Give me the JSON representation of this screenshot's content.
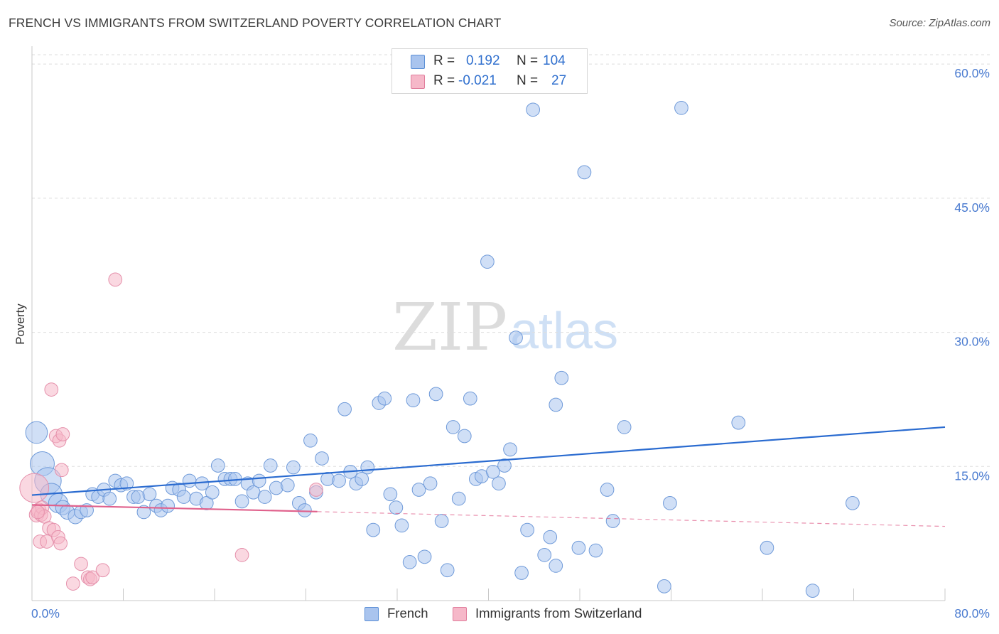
{
  "header": {
    "title": "FRENCH VS IMMIGRANTS FROM SWITZERLAND POVERTY CORRELATION CHART",
    "source": "Source: ZipAtlas.com"
  },
  "legend": {
    "rows": [
      {
        "r_label": "R =",
        "r_value": "0.192",
        "n_label": "N =",
        "n_value": "104",
        "color": "#a9c4ee",
        "border": "#5b8fd6"
      },
      {
        "r_label": "R =",
        "r_value": "-0.021",
        "n_label": "N =",
        "n_value": "27",
        "color": "#f6b8c9",
        "border": "#e07d9c"
      }
    ]
  },
  "bottom_legend": {
    "french": "French",
    "swiss": "Immigrants from Switzerland"
  },
  "watermark": {
    "zip": "ZIP",
    "atlas": "atlas"
  },
  "colors": {
    "french_fill": "#a9c4ee",
    "french_stroke": "#6f9ad9",
    "french_line": "#2a6bd0",
    "swiss_fill": "#f6b8c9",
    "swiss_stroke": "#e590ab",
    "swiss_line": "#e0618c",
    "grid": "#dedede",
    "tick": "#4a7bd0"
  },
  "chart_data": {
    "type": "scatter",
    "title": "FRENCH VS IMMIGRANTS FROM SWITZERLAND POVERTY CORRELATION CHART",
    "xlabel": "",
    "ylabel": "Poverty",
    "xlim": [
      0,
      80
    ],
    "ylim": [
      0,
      62
    ],
    "x_tick_labels": [
      {
        "value": 0,
        "label": "0.0%"
      },
      {
        "value": 80,
        "label": "80.0%"
      }
    ],
    "y_tick_labels": [
      {
        "value": 15,
        "label": "15.0%"
      },
      {
        "value": 30,
        "label": "30.0%"
      },
      {
        "value": 45,
        "label": "45.0%"
      },
      {
        "value": 60,
        "label": "60.0%"
      }
    ],
    "series": [
      {
        "name": "French",
        "r": 0.192,
        "n": 104,
        "trend": {
          "x": [
            0,
            80
          ],
          "y": [
            11.8,
            19.4
          ],
          "dashed_from": null
        },
        "points": [
          [
            0.4,
            18.8,
            1.8
          ],
          [
            0.9,
            15.3,
            2.0
          ],
          [
            1.4,
            13.4,
            2.2
          ],
          [
            1.7,
            11.9,
            1.8
          ],
          [
            2.3,
            10.9,
            1.6
          ],
          [
            2.7,
            10.4,
            1.2
          ],
          [
            3.1,
            9.9,
            1.2
          ],
          [
            3.8,
            9.4,
            1.2
          ],
          [
            4.3,
            9.9,
            1.1
          ],
          [
            4.8,
            10.1,
            1.1
          ],
          [
            5.3,
            11.9,
            1.1
          ],
          [
            5.8,
            11.6,
            1.1
          ],
          [
            6.3,
            12.4,
            1.1
          ],
          [
            6.8,
            11.4,
            1.1
          ],
          [
            7.3,
            13.4,
            1.1
          ],
          [
            7.8,
            12.9,
            1.1
          ],
          [
            8.3,
            13.1,
            1.1
          ],
          [
            8.9,
            11.6,
            1.1
          ],
          [
            9.3,
            11.6,
            1.1
          ],
          [
            9.8,
            9.9,
            1.1
          ],
          [
            10.3,
            11.9,
            1.1
          ],
          [
            10.9,
            10.6,
            1.1
          ],
          [
            11.3,
            10.1,
            1.1
          ],
          [
            11.9,
            10.6,
            1.1
          ],
          [
            12.3,
            12.6,
            1.1
          ],
          [
            12.9,
            12.4,
            1.1
          ],
          [
            13.3,
            11.6,
            1.1
          ],
          [
            13.8,
            13.4,
            1.1
          ],
          [
            14.4,
            11.4,
            1.1
          ],
          [
            14.9,
            13.1,
            1.1
          ],
          [
            15.3,
            10.9,
            1.1
          ],
          [
            15.8,
            12.1,
            1.1
          ],
          [
            16.3,
            15.1,
            1.1
          ],
          [
            16.9,
            13.6,
            1.1
          ],
          [
            17.4,
            13.6,
            1.1
          ],
          [
            17.8,
            13.6,
            1.1
          ],
          [
            18.4,
            11.1,
            1.1
          ],
          [
            18.9,
            13.1,
            1.1
          ],
          [
            19.4,
            12.1,
            1.1
          ],
          [
            19.9,
            13.4,
            1.1
          ],
          [
            20.4,
            11.6,
            1.1
          ],
          [
            20.9,
            15.1,
            1.1
          ],
          [
            21.4,
            12.6,
            1.1
          ],
          [
            22.4,
            12.9,
            1.1
          ],
          [
            22.9,
            14.9,
            1.1
          ],
          [
            23.4,
            10.9,
            1.1
          ],
          [
            23.9,
            10.1,
            1.1
          ],
          [
            24.4,
            17.9,
            1.1
          ],
          [
            24.9,
            12.1,
            1.1
          ],
          [
            25.4,
            15.9,
            1.1
          ],
          [
            25.9,
            13.6,
            1.1
          ],
          [
            26.9,
            13.4,
            1.1
          ],
          [
            27.4,
            21.4,
            1.1
          ],
          [
            27.9,
            14.4,
            1.1
          ],
          [
            28.4,
            13.1,
            1.1
          ],
          [
            28.9,
            13.6,
            1.1
          ],
          [
            29.4,
            14.9,
            1.1
          ],
          [
            29.9,
            7.9,
            1.1
          ],
          [
            30.4,
            22.1,
            1.1
          ],
          [
            30.9,
            22.6,
            1.1
          ],
          [
            31.4,
            11.9,
            1.1
          ],
          [
            31.9,
            10.4,
            1.1
          ],
          [
            32.4,
            8.4,
            1.1
          ],
          [
            33.4,
            22.4,
            1.1
          ],
          [
            33.9,
            12.4,
            1.1
          ],
          [
            34.4,
            4.9,
            1.1
          ],
          [
            34.9,
            13.1,
            1.1
          ],
          [
            35.4,
            23.1,
            1.1
          ],
          [
            35.9,
            8.9,
            1.1
          ],
          [
            36.4,
            3.4,
            1.1
          ],
          [
            36.9,
            19.4,
            1.1
          ],
          [
            37.4,
            11.4,
            1.1
          ],
          [
            37.9,
            18.4,
            1.1
          ],
          [
            38.4,
            22.6,
            1.1
          ],
          [
            38.9,
            13.6,
            1.1
          ],
          [
            39.4,
            13.9,
            1.1
          ],
          [
            39.9,
            37.9,
            1.1
          ],
          [
            40.4,
            14.4,
            1.1
          ],
          [
            40.9,
            13.1,
            1.1
          ],
          [
            41.4,
            15.1,
            1.1
          ],
          [
            41.9,
            16.9,
            1.1
          ],
          [
            42.4,
            29.4,
            1.1
          ],
          [
            42.9,
            3.1,
            1.1
          ],
          [
            43.4,
            7.9,
            1.1
          ],
          [
            43.9,
            54.9,
            1.1
          ],
          [
            44.9,
            5.1,
            1.1
          ],
          [
            45.4,
            7.1,
            1.1
          ],
          [
            45.9,
            21.9,
            1.1
          ],
          [
            46.4,
            24.9,
            1.1
          ],
          [
            47.9,
            5.9,
            1.1
          ],
          [
            48.4,
            47.9,
            1.1
          ],
          [
            49.4,
            5.6,
            1.1
          ],
          [
            50.4,
            12.4,
            1.1
          ],
          [
            50.9,
            8.9,
            1.1
          ],
          [
            51.9,
            19.4,
            1.1
          ],
          [
            55.4,
            1.6,
            1.1
          ],
          [
            55.9,
            10.9,
            1.1
          ],
          [
            56.9,
            55.1,
            1.1
          ],
          [
            61.9,
            19.9,
            1.1
          ],
          [
            64.4,
            5.9,
            1.1
          ],
          [
            68.4,
            1.1,
            1.1
          ],
          [
            71.9,
            10.9,
            1.1
          ],
          [
            45.9,
            3.9,
            1.1
          ],
          [
            33.1,
            4.3,
            1.1
          ]
        ]
      },
      {
        "name": "Immigrants from Switzerland",
        "r": -0.021,
        "n": 27,
        "trend": {
          "x": [
            0,
            80
          ],
          "y": [
            10.7,
            8.3
          ],
          "dashed_from": 25
        },
        "points": [
          [
            0.2,
            12.6,
            2.4
          ],
          [
            0.4,
            9.6,
            1.2
          ],
          [
            0.6,
            10.1,
            1.2
          ],
          [
            0.7,
            6.6,
            1.1
          ],
          [
            0.8,
            9.6,
            1.1
          ],
          [
            0.9,
            10.4,
            1.1
          ],
          [
            1.1,
            9.4,
            1.1
          ],
          [
            1.3,
            6.6,
            1.1
          ],
          [
            1.5,
            8.1,
            1.1
          ],
          [
            1.7,
            23.6,
            1.1
          ],
          [
            1.9,
            7.9,
            1.1
          ],
          [
            2.1,
            18.4,
            1.1
          ],
          [
            2.3,
            7.1,
            1.1
          ],
          [
            2.4,
            17.9,
            1.1
          ],
          [
            2.5,
            6.4,
            1.1
          ],
          [
            2.7,
            18.6,
            1.1
          ],
          [
            2.6,
            14.6,
            1.1
          ],
          [
            3.6,
            1.9,
            1.1
          ],
          [
            4.3,
            4.1,
            1.1
          ],
          [
            4.9,
            2.6,
            1.1
          ],
          [
            5.1,
            2.4,
            1.1
          ],
          [
            5.3,
            2.6,
            1.1
          ],
          [
            6.2,
            3.4,
            1.1
          ],
          [
            7.3,
            35.9,
            1.1
          ],
          [
            18.4,
            5.1,
            1.1
          ],
          [
            24.9,
            12.4,
            1.1
          ],
          [
            0.5,
            9.9,
            1.1
          ]
        ]
      }
    ]
  }
}
